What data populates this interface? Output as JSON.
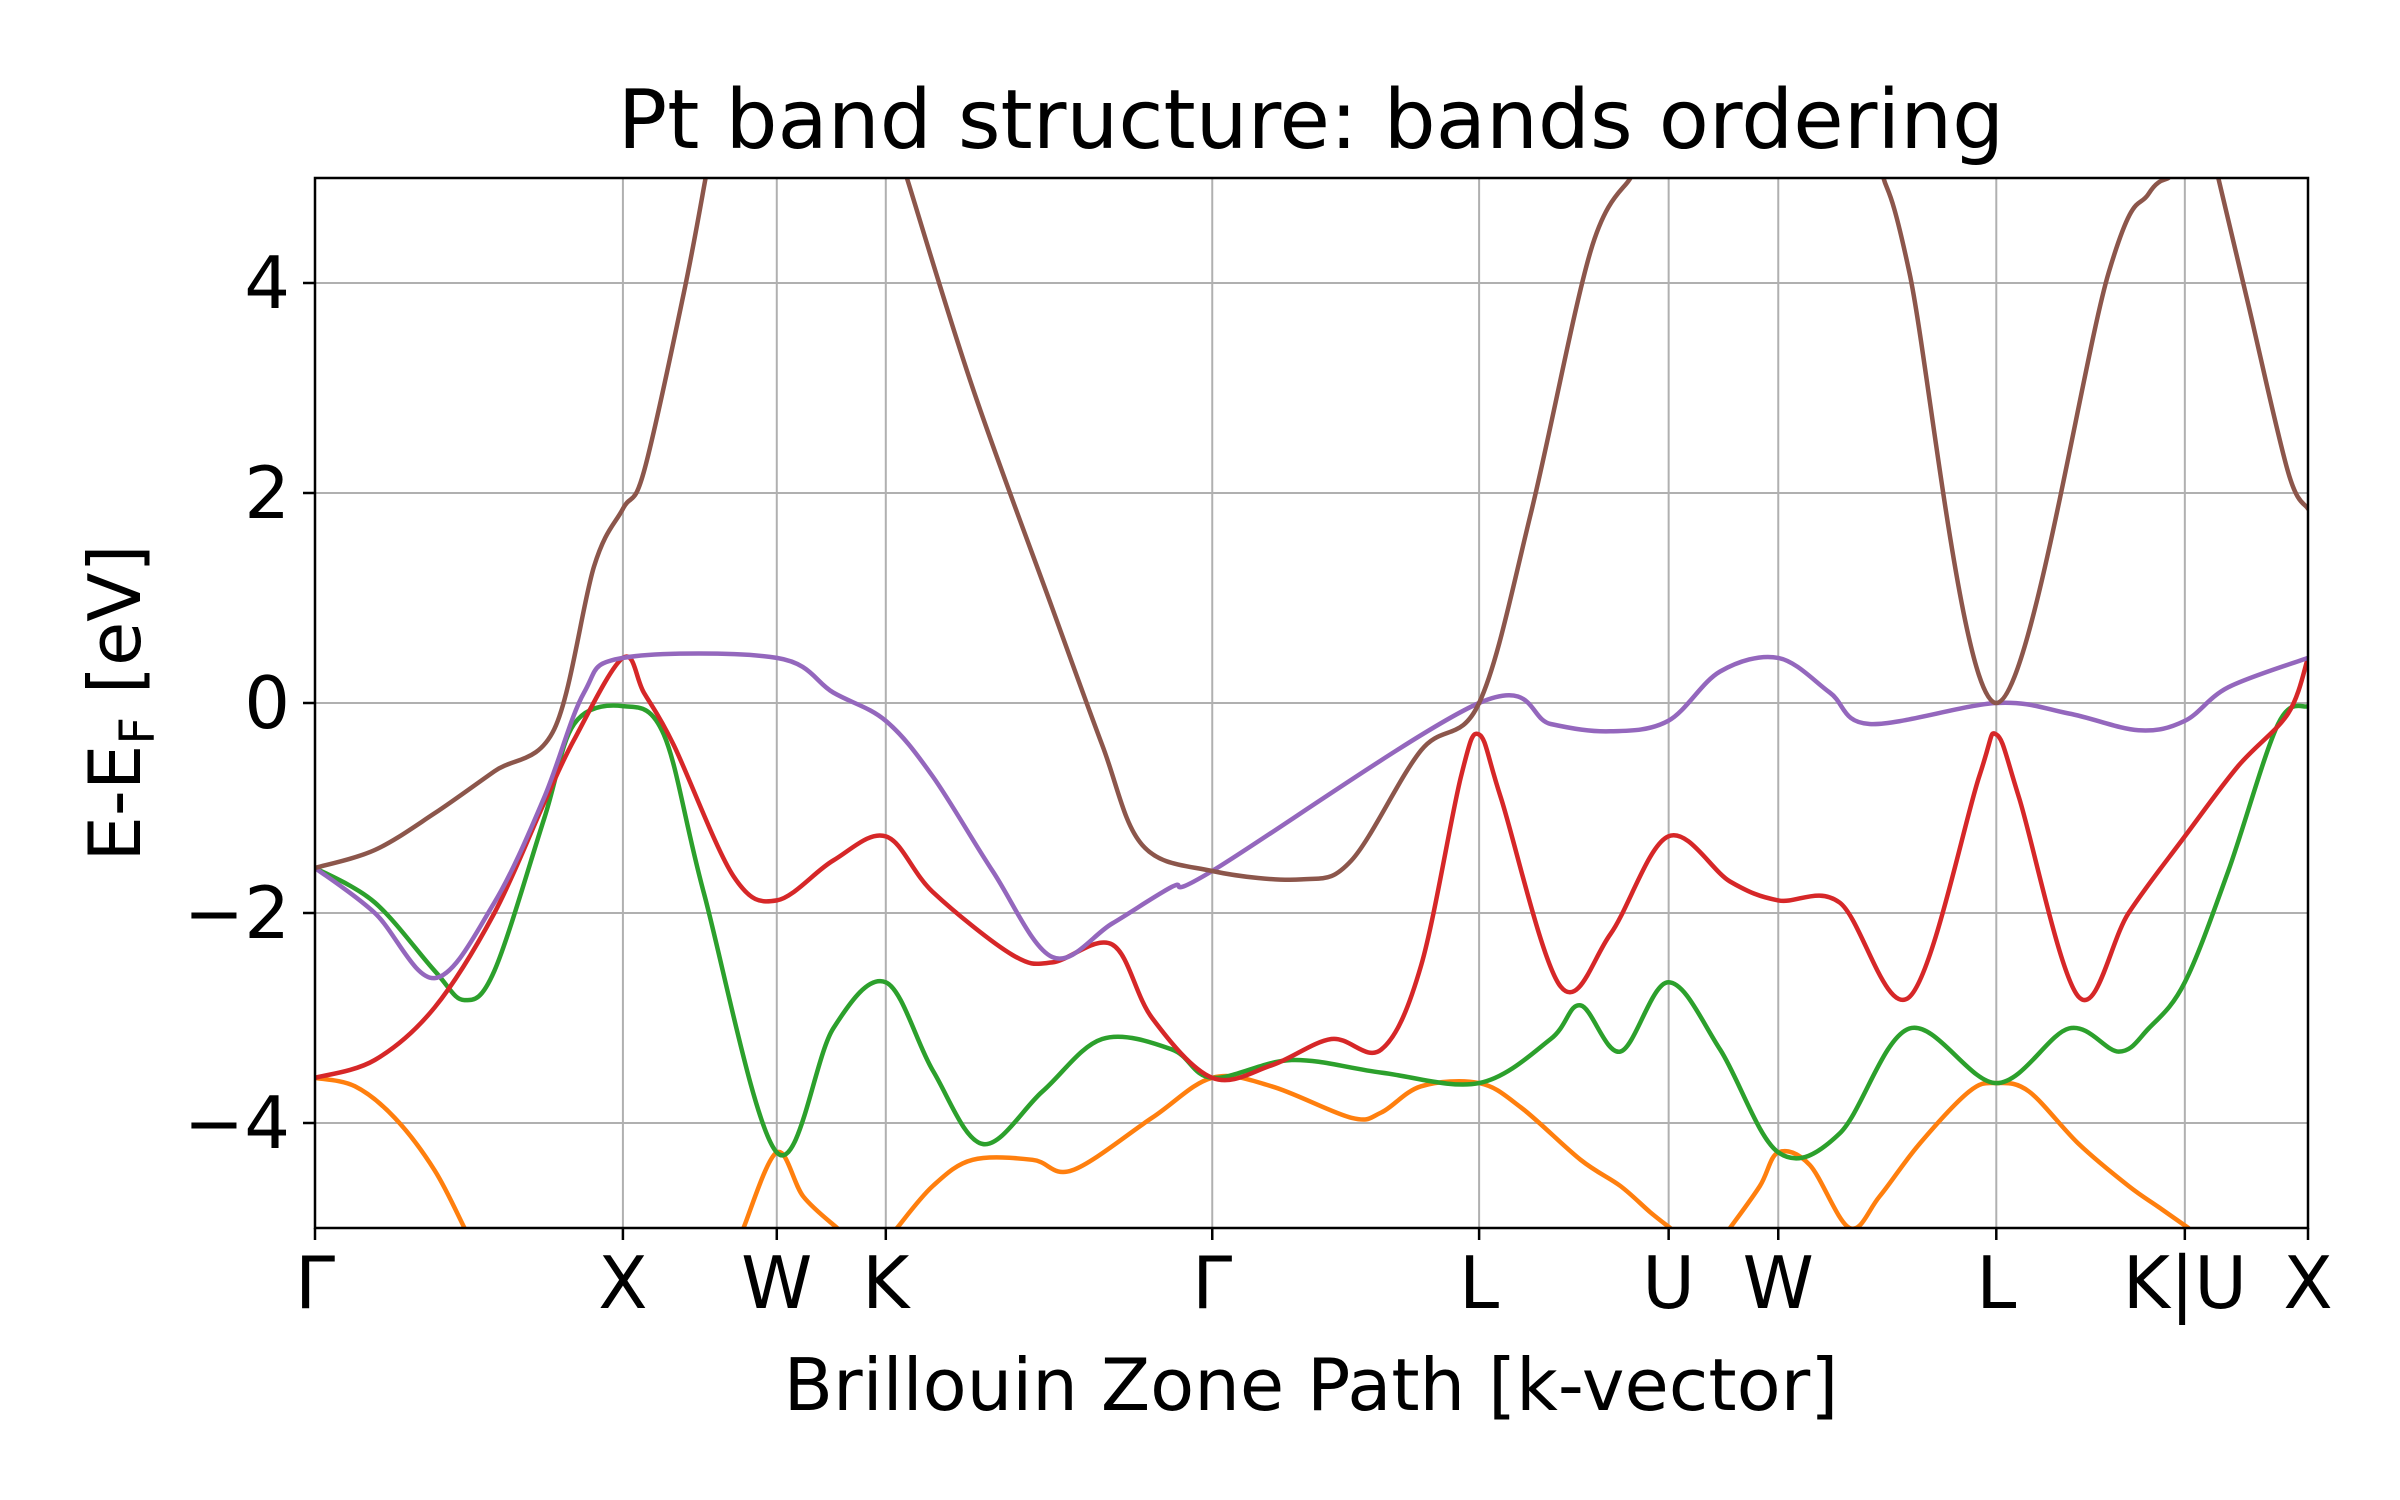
{
  "chart_data": {
    "type": "line",
    "title": "Pt band structure: bands ordering",
    "xlabel": "Brillouin Zone Path [k-vector]",
    "ylabel_main": "E-E",
    "ylabel_sub": "F",
    "ylabel_tail": " [eV]",
    "xlim": [
      0,
      1
    ],
    "ylim": [
      -5,
      5
    ],
    "grid": true,
    "x_ticks": [
      {
        "label": "Γ",
        "x": 0.0
      },
      {
        "label": "X",
        "x": 0.1545
      },
      {
        "label": "W",
        "x": 0.2317
      },
      {
        "label": "K",
        "x": 0.2864
      },
      {
        "label": "Γ",
        "x": 0.4502
      },
      {
        "label": "L",
        "x": 0.5841
      },
      {
        "label": "U",
        "x": 0.6792
      },
      {
        "label": "W",
        "x": 0.7342
      },
      {
        "label": "L",
        "x": 0.8436
      },
      {
        "label": "K|U",
        "x": 0.9382
      },
      {
        "label": "X",
        "x": 1.0
      }
    ],
    "y_ticks": [
      {
        "label": "4",
        "y": 4
      },
      {
        "label": "2",
        "y": 2
      },
      {
        "label": "0",
        "y": 0
      },
      {
        "label": "−2",
        "y": -2
      },
      {
        "label": "−4",
        "y": -4
      }
    ],
    "series": [
      {
        "color": "#ff7f0e",
        "points": [
          [
            0,
            -3.57
          ],
          [
            0.02,
            -3.65
          ],
          [
            0.04,
            -3.95
          ],
          [
            0.06,
            -4.45
          ],
          [
            0.075,
            -5.0
          ],
          null,
          [
            0.215,
            -5.0
          ],
          [
            0.2317,
            -4.28
          ],
          [
            0.245,
            -4.7
          ],
          [
            0.262,
            -5.0
          ],
          null,
          [
            0.292,
            -5.0
          ],
          [
            0.31,
            -4.6
          ],
          [
            0.33,
            -4.35
          ],
          [
            0.36,
            -4.35
          ],
          [
            0.38,
            -4.45
          ],
          [
            0.42,
            -3.95
          ],
          [
            0.4502,
            -3.57
          ],
          [
            0.48,
            -3.65
          ],
          [
            0.52,
            -3.95
          ],
          [
            0.535,
            -3.9
          ],
          [
            0.555,
            -3.65
          ],
          [
            0.5841,
            -3.62
          ],
          [
            0.605,
            -3.85
          ],
          [
            0.635,
            -4.35
          ],
          [
            0.655,
            -4.6
          ],
          [
            0.67,
            -4.85
          ],
          [
            0.68,
            -5.0
          ],
          null,
          [
            0.71,
            -5.0
          ],
          [
            0.725,
            -4.6
          ],
          [
            0.7342,
            -4.28
          ],
          [
            0.75,
            -4.4
          ],
          [
            0.77,
            -5.0
          ],
          [
            0.785,
            -4.7
          ],
          [
            0.805,
            -4.2
          ],
          [
            0.83,
            -3.7
          ],
          [
            0.8436,
            -3.62
          ],
          [
            0.86,
            -3.7
          ],
          [
            0.885,
            -4.2
          ],
          [
            0.91,
            -4.6
          ],
          [
            0.925,
            -4.8
          ],
          [
            0.94,
            -5.0
          ]
        ]
      },
      {
        "color": "#2ca02c",
        "points": [
          [
            0,
            -1.57
          ],
          [
            0.03,
            -1.9
          ],
          [
            0.06,
            -2.55
          ],
          [
            0.075,
            -2.83
          ],
          [
            0.09,
            -2.55
          ],
          [
            0.115,
            -1.1
          ],
          [
            0.13,
            -0.2
          ],
          [
            0.1545,
            -0.03
          ],
          [
            0.175,
            -0.3
          ],
          [
            0.195,
            -1.8
          ],
          [
            0.2317,
            -4.28
          ],
          [
            0.26,
            -3.1
          ],
          [
            0.2864,
            -2.66
          ],
          [
            0.31,
            -3.5
          ],
          [
            0.335,
            -4.2
          ],
          [
            0.365,
            -3.7
          ],
          [
            0.395,
            -3.2
          ],
          [
            0.43,
            -3.3
          ],
          [
            0.4502,
            -3.57
          ],
          [
            0.49,
            -3.4
          ],
          [
            0.535,
            -3.52
          ],
          [
            0.5841,
            -3.62
          ],
          [
            0.62,
            -3.2
          ],
          [
            0.635,
            -2.88
          ],
          [
            0.655,
            -3.32
          ],
          [
            0.679,
            -2.66
          ],
          [
            0.705,
            -3.3
          ],
          [
            0.7342,
            -4.28
          ],
          [
            0.765,
            -4.1
          ],
          [
            0.8,
            -3.1
          ],
          [
            0.8436,
            -3.62
          ],
          [
            0.88,
            -3.1
          ],
          [
            0.905,
            -3.32
          ],
          [
            0.92,
            -3.1
          ],
          [
            0.9382,
            -2.66
          ],
          [
            0.96,
            -1.6
          ],
          [
            0.985,
            -0.2
          ],
          [
            1.0,
            -0.03
          ]
        ]
      },
      {
        "color": "#d62728",
        "points": [
          [
            0,
            -3.57
          ],
          [
            0.03,
            -3.4
          ],
          [
            0.06,
            -2.9
          ],
          [
            0.09,
            -2.0
          ],
          [
            0.115,
            -0.95
          ],
          [
            0.13,
            -0.35
          ],
          [
            0.1545,
            0.43
          ],
          [
            0.165,
            0.1
          ],
          [
            0.18,
            -0.4
          ],
          [
            0.21,
            -1.65
          ],
          [
            0.2317,
            -1.88
          ],
          [
            0.26,
            -1.5
          ],
          [
            0.2864,
            -1.27
          ],
          [
            0.31,
            -1.8
          ],
          [
            0.35,
            -2.4
          ],
          [
            0.37,
            -2.47
          ],
          [
            0.4,
            -2.3
          ],
          [
            0.42,
            -3.0
          ],
          [
            0.4502,
            -3.57
          ],
          [
            0.48,
            -3.45
          ],
          [
            0.51,
            -3.2
          ],
          [
            0.535,
            -3.3
          ],
          [
            0.555,
            -2.5
          ],
          [
            0.575,
            -0.7
          ],
          [
            0.5841,
            -0.3
          ],
          [
            0.595,
            -0.9
          ],
          [
            0.625,
            -2.7
          ],
          [
            0.65,
            -2.2
          ],
          [
            0.679,
            -1.27
          ],
          [
            0.71,
            -1.7
          ],
          [
            0.7342,
            -1.88
          ],
          [
            0.765,
            -1.9
          ],
          [
            0.8,
            -2.8
          ],
          [
            0.835,
            -0.7
          ],
          [
            0.8436,
            -0.3
          ],
          [
            0.855,
            -0.9
          ],
          [
            0.885,
            -2.8
          ],
          [
            0.91,
            -2.0
          ],
          [
            0.9382,
            -1.27
          ],
          [
            0.965,
            -0.6
          ],
          [
            0.99,
            -0.1
          ],
          [
            1.0,
            0.43
          ]
        ]
      },
      {
        "color": "#9467bd",
        "points": [
          [
            0,
            -1.57
          ],
          [
            0.03,
            -2.0
          ],
          [
            0.06,
            -2.62
          ],
          [
            0.09,
            -1.9
          ],
          [
            0.115,
            -0.9
          ],
          [
            0.135,
            0.1
          ],
          [
            0.1545,
            0.43
          ],
          [
            0.2317,
            0.43
          ],
          [
            0.26,
            0.1
          ],
          [
            0.2864,
            -0.17
          ],
          [
            0.31,
            -0.7
          ],
          [
            0.34,
            -1.6
          ],
          [
            0.37,
            -2.42
          ],
          [
            0.4,
            -2.1
          ],
          [
            0.43,
            -1.75
          ],
          [
            0.4502,
            -1.6
          ],
          [
            0.5841,
            0
          ],
          [
            0.62,
            -0.2
          ],
          [
            0.65,
            -0.27
          ],
          [
            0.679,
            -0.17
          ],
          [
            0.705,
            0.3
          ],
          [
            0.7342,
            0.43
          ],
          [
            0.76,
            0.1
          ],
          [
            0.78,
            -0.2
          ],
          [
            0.8436,
            0
          ],
          [
            0.88,
            -0.1
          ],
          [
            0.915,
            -0.26
          ],
          [
            0.9382,
            -0.17
          ],
          [
            0.96,
            0.15
          ],
          [
            1.0,
            0.43
          ]
        ]
      },
      {
        "color": "#8c564b",
        "points": [
          [
            0,
            -1.57
          ],
          [
            0.03,
            -1.4
          ],
          [
            0.06,
            -1.05
          ],
          [
            0.09,
            -0.65
          ],
          [
            0.12,
            -0.25
          ],
          [
            0.14,
            1.3
          ],
          [
            0.1545,
            1.85
          ],
          [
            0.165,
            2.2
          ],
          [
            0.185,
            3.9
          ],
          [
            0.196,
            5.0
          ],
          null,
          [
            0.297,
            5.0
          ],
          [
            0.33,
            3.0
          ],
          [
            0.37,
            0.9
          ],
          [
            0.395,
            -0.4
          ],
          [
            0.415,
            -1.35
          ],
          [
            0.4502,
            -1.6
          ],
          [
            0.495,
            -1.68
          ],
          [
            0.52,
            -1.5
          ],
          [
            0.555,
            -0.45
          ],
          [
            0.5841,
            0
          ],
          [
            0.61,
            1.8
          ],
          [
            0.64,
            4.3
          ],
          [
            0.66,
            5.0
          ],
          null,
          [
            0.787,
            5.0
          ],
          [
            0.8,
            4.1
          ],
          [
            0.8436,
            0
          ],
          [
            0.9,
            4.1
          ],
          [
            0.92,
            4.85
          ],
          [
            0.93,
            5.0
          ],
          null,
          [
            0.955,
            5.0
          ],
          [
            0.97,
            3.8
          ],
          [
            0.99,
            2.2
          ],
          [
            1.0,
            1.85
          ]
        ]
      }
    ]
  }
}
